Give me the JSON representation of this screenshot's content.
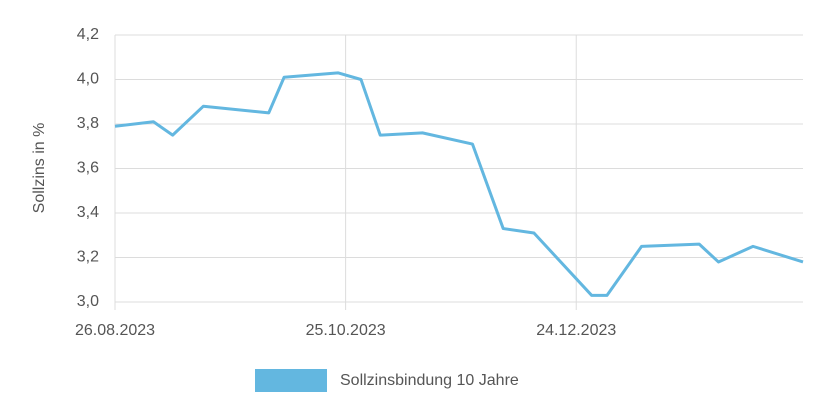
{
  "chart_data": {
    "type": "line",
    "y_label": "Sollzins in %",
    "x": [
      "2023-08-26",
      "2023-09-05",
      "2023-09-10",
      "2023-09-18",
      "2023-10-05",
      "2023-10-09",
      "2023-10-23",
      "2023-10-29",
      "2023-11-03",
      "2023-11-14",
      "2023-11-27",
      "2023-12-05",
      "2023-12-13",
      "2023-12-28",
      "2024-01-01",
      "2024-01-10",
      "2024-01-25",
      "2024-01-30",
      "2024-02-08",
      "2024-02-21"
    ],
    "series": [
      {
        "name": "Sollzinsbindung 10 Jahre",
        "color": "#63b7e0",
        "values": [
          3.79,
          3.81,
          3.75,
          3.88,
          3.85,
          4.01,
          4.03,
          4.0,
          3.75,
          3.76,
          3.71,
          3.33,
          3.31,
          3.03,
          3.03,
          3.25,
          3.26,
          3.18,
          3.25,
          3.18
        ]
      }
    ],
    "xlim": [
      "2023-08-26",
      "2024-02-21"
    ],
    "xticks": [
      {
        "value": "2023-08-26",
        "label": "26.08.2023"
      },
      {
        "value": "2023-10-25",
        "label": "25.10.2023"
      },
      {
        "value": "2023-12-24",
        "label": "24.12.2023"
      }
    ],
    "ylim": [
      3.0,
      4.2
    ],
    "yticks": [
      {
        "value": 3.0,
        "label": "3,0"
      },
      {
        "value": 3.2,
        "label": "3,2"
      },
      {
        "value": 3.4,
        "label": "3,4"
      },
      {
        "value": 3.6,
        "label": "3,6"
      },
      {
        "value": 3.8,
        "label": "3,8"
      },
      {
        "value": 4.0,
        "label": "4,0"
      },
      {
        "value": 4.2,
        "label": "4,2"
      }
    ],
    "grid": true,
    "legend": "bottom"
  }
}
